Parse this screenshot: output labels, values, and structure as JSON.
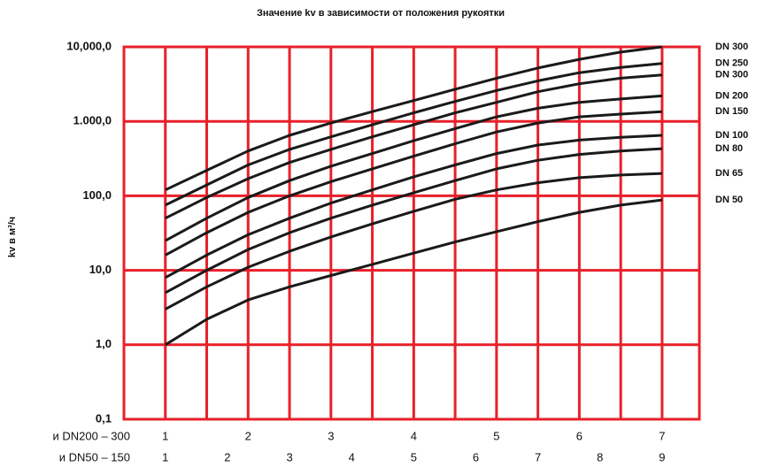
{
  "chart_data": {
    "type": "line",
    "title": "Значение kv в зависимости от положения рукоятки",
    "y_label": "kv в м³/ч",
    "x_label": "и DN200 – 300",
    "x2_label": "и DN50 – 150",
    "x": [
      1,
      1.5,
      2,
      2.5,
      3,
      3.5,
      4,
      4.5,
      5,
      5.5,
      6,
      6.5,
      7
    ],
    "xlim": [
      0.5,
      7.45
    ],
    "xticks": [
      1,
      2,
      3,
      4,
      5,
      6,
      7
    ],
    "xminorticks": [
      1.5,
      2.5,
      3.5,
      4.5,
      5.5,
      6.5
    ],
    "x2lim": [
      0.333,
      9.6
    ],
    "x2ticks": [
      1,
      2,
      3,
      4,
      5,
      6,
      7,
      8,
      9
    ],
    "ylim": [
      0.1,
      10000
    ],
    "log_y": true,
    "yticks": [
      {
        "value": 0.1,
        "label": "0,1"
      },
      {
        "value": 1,
        "label": "1,0"
      },
      {
        "value": 10,
        "label": "10,0"
      },
      {
        "value": 100,
        "label": "100,0"
      },
      {
        "value": 1000,
        "label": "1.000,0"
      },
      {
        "value": 10000,
        "label": "10,000,0"
      }
    ],
    "grid": true,
    "grid_color": "#e8202a",
    "series": [
      {
        "name": "DN 300",
        "color": "#1a1a1a",
        "values": [
          120,
          220,
          400,
          650,
          950,
          1350,
          1900,
          2700,
          3800,
          5200,
          6800,
          8500,
          10000
        ]
      },
      {
        "name": "DN 250",
        "color": "#1a1a1a",
        "values": [
          75,
          140,
          260,
          420,
          620,
          900,
          1300,
          1850,
          2600,
          3500,
          4500,
          5300,
          6000
        ]
      },
      {
        "name": "DN 300",
        "color": "#1a1a1a",
        "values": [
          50,
          95,
          170,
          280,
          420,
          620,
          900,
          1300,
          1800,
          2500,
          3200,
          3800,
          4200
        ]
      },
      {
        "name": "DN 200",
        "color": "#1a1a1a",
        "values": [
          25,
          50,
          95,
          160,
          250,
          370,
          550,
          800,
          1150,
          1500,
          1800,
          2000,
          2200
        ]
      },
      {
        "name": "DN 150",
        "color": "#1a1a1a",
        "values": [
          16,
          32,
          60,
          100,
          155,
          230,
          340,
          500,
          720,
          950,
          1150,
          1250,
          1350
        ]
      },
      {
        "name": "DN 100",
        "color": "#1a1a1a",
        "values": [
          8,
          16,
          30,
          50,
          80,
          120,
          180,
          260,
          370,
          480,
          560,
          610,
          650
        ]
      },
      {
        "name": "DN 80",
        "color": "#1a1a1a",
        "values": [
          5,
          10,
          19,
          32,
          50,
          75,
          110,
          160,
          230,
          300,
          360,
          400,
          430
        ]
      },
      {
        "name": "DN 65",
        "color": "#1a1a1a",
        "values": [
          3,
          6,
          11,
          18,
          28,
          42,
          62,
          90,
          120,
          150,
          175,
          190,
          200
        ]
      },
      {
        "name": "DN 50",
        "color": "#1a1a1a",
        "values": [
          1,
          2.2,
          4,
          6,
          8.5,
          12,
          17,
          24,
          33,
          45,
          60,
          75,
          88
        ]
      }
    ]
  }
}
